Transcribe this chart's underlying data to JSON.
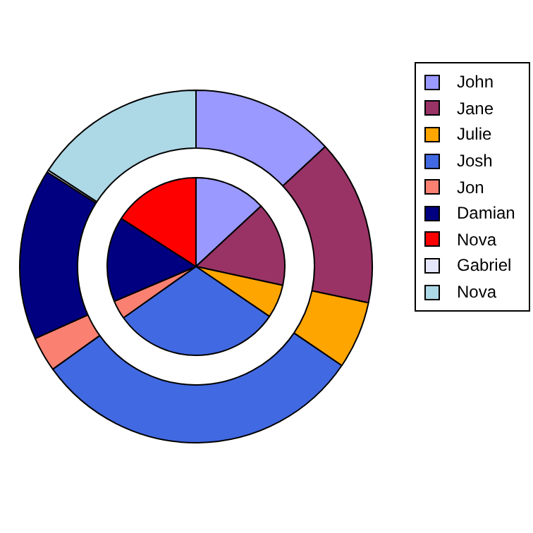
{
  "chart_data": {
    "type": "donut",
    "categories": [
      "John",
      "Jane",
      "Julie",
      "Josh",
      "Jon",
      "Damian",
      "Nova",
      "Gabriel",
      "Nova"
    ],
    "series": [
      {
        "type": "pie",
        "values": [
          13.1,
          15.3,
          6.1,
          30.7,
          3.4,
          15.5,
          15.9,
          null,
          null
        ],
        "colors": [
          "#9999ff",
          "#993366",
          "#ffa500",
          "#4169e1",
          "#fa8072",
          "#000080",
          "#ff0000",
          null,
          null
        ]
      },
      {
        "type": "donut",
        "values": [
          13.1,
          15.2,
          6.2,
          30.6,
          3.2,
          15.7,
          null,
          0.2,
          15.8
        ],
        "colors": [
          "#9999ff",
          "#993366",
          "#ffa500",
          "#4169e1",
          "#fa8072",
          "#000080",
          null,
          "#e6e6fa",
          "#add8e6"
        ]
      }
    ],
    "legend": "right"
  }
}
